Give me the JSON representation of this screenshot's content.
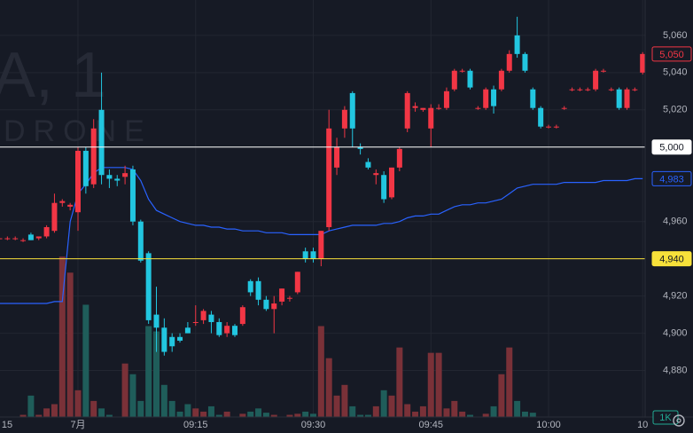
{
  "watermark": {
    "symbol": "A, 1",
    "name": "DRONE"
  },
  "chart_data": {
    "type": "candlestick",
    "categories": [
      "15",
      null,
      null,
      null,
      null,
      null,
      null,
      null,
      null,
      null,
      "7月",
      null,
      null,
      null,
      null,
      null,
      null,
      null,
      null,
      null,
      null,
      null,
      null,
      null,
      null,
      "09:15",
      null,
      null,
      null,
      null,
      null,
      null,
      null,
      null,
      null,
      null,
      null,
      null,
      null,
      null,
      "09:30",
      null,
      null,
      null,
      null,
      null,
      null,
      null,
      null,
      null,
      null,
      null,
      null,
      null,
      null,
      "09:45",
      null,
      null,
      null,
      null,
      null,
      null,
      null,
      null,
      null,
      null,
      null,
      null,
      null,
      null,
      "10:00",
      null,
      null,
      null,
      null,
      null,
      null,
      null,
      null,
      null,
      null,
      null,
      "10"
    ],
    "open": [
      4951,
      4951,
      4951,
      4950,
      4953,
      4951,
      4952,
      4955,
      4970,
      4968,
      4965,
      4998,
      4980,
      5020,
      4985,
      4983,
      4984,
      4988,
      4960,
      4943,
      4910,
      4903,
      4898,
      4898,
      4903,
      4906,
      4907,
      4910,
      4906,
      4900,
      4904,
      4905,
      4928,
      4928,
      4918,
      4913,
      4917,
      4919,
      4922,
      4944,
      4944,
      4940,
      4957,
      4989,
      5010,
      5029,
      5000,
      4992,
      4985,
      4985,
      4973,
      4989,
      5010,
      5021,
      5020,
      5010,
      5021,
      5021,
      5031,
      5041,
      5041,
      5021,
      5021,
      5031,
      5031,
      5041,
      5060,
      5050,
      5031,
      5021,
      5011,
      5011,
      5021,
      5031,
      5031,
      5031,
      5031,
      5041,
      5031,
      5031,
      5021,
      5031,
      5040
    ],
    "high": [
      4952,
      4952,
      4952,
      4951,
      4954,
      4952,
      4958,
      4975,
      4972,
      4970,
      5000,
      5000,
      5015,
      5040,
      4988,
      4985,
      4990,
      4990,
      4961,
      4944,
      4925,
      4908,
      4900,
      4900,
      4906,
      4915,
      4913,
      4912,
      4908,
      4906,
      4905,
      4915,
      4929,
      4930,
      4920,
      4920,
      4924,
      4920,
      4933,
      4946,
      4946,
      4955,
      5020,
      5005,
      5022,
      5030,
      5002,
      4994,
      4988,
      4987,
      4989,
      5000,
      5030,
      5024,
      5021,
      5023,
      5023,
      5032,
      5042,
      5042,
      5042,
      5022,
      5032,
      5033,
      5042,
      5052,
      5070,
      5051,
      5032,
      5022,
      5012,
      5012,
      5022,
      5032,
      5032,
      5032,
      5042,
      5042,
      5032,
      5032,
      5032,
      5032,
      5051
    ],
    "low": [
      4950,
      4950,
      4950,
      4949,
      4950,
      4950,
      4951,
      4954,
      4968,
      4966,
      4955,
      4975,
      4978,
      4980,
      4978,
      4979,
      4980,
      4958,
      4938,
      4905,
      4890,
      4888,
      4890,
      4895,
      4900,
      4904,
      4905,
      4900,
      4898,
      4898,
      4898,
      4904,
      4920,
      4915,
      4912,
      4900,
      4915,
      4917,
      4921,
      4938,
      4938,
      4936,
      4955,
      4985,
      5005,
      5000,
      4996,
      4988,
      4980,
      4970,
      4972,
      4987,
      5008,
      5019,
      5019,
      5000,
      5020,
      5020,
      5030,
      5040,
      5031,
      5020,
      5020,
      5018,
      5030,
      5040,
      5048,
      5040,
      5020,
      5010,
      5010,
      5010,
      5020,
      5030,
      5030,
      5030,
      5030,
      5040,
      5030,
      5020,
      5020,
      5030,
      5039
    ],
    "close": [
      4951,
      4951,
      4951,
      4950,
      4950,
      4952,
      4957,
      4970,
      4971,
      4969,
      4998,
      4979,
      5010,
      4985,
      4983,
      4982,
      4986,
      4960,
      4939,
      4907,
      4903,
      4890,
      4893,
      4896,
      4900,
      4906,
      4912,
      4906,
      4899,
      4904,
      4899,
      4914,
      4922,
      4918,
      4913,
      4916,
      4924,
      4919,
      4933,
      4940,
      4940,
      4955,
      5010,
      5000,
      5020,
      5010,
      4999,
      4989,
      4986,
      4972,
      4989,
      4999,
      5029,
      5022,
      5021,
      5021,
      5021,
      5030,
      5041,
      5041,
      5032,
      5021,
      5031,
      5022,
      5041,
      5050,
      5050,
      5041,
      5021,
      5011,
      5011,
      5011,
      5021,
      5031,
      5031,
      5031,
      5041,
      5041,
      5031,
      5021,
      5031,
      5031,
      5050
    ],
    "up_color": "#f23645",
    "down_color": "#22c6e0",
    "volume": [
      800,
      1000,
      800,
      1200,
      3000,
      1200,
      1800,
      2200,
      16000,
      14500,
      3500,
      11500,
      2500,
      1800,
      1200,
      800,
      6000,
      5000,
      2500,
      9500,
      9000,
      4000,
      2500,
      1500,
      2200,
      1800,
      1500,
      2000,
      1200,
      1500,
      1000,
      1300,
      1500,
      1800,
      1400,
      1200,
      1000,
      1200,
      1300,
      1500,
      1300,
      9500,
      6500,
      3000,
      4000,
      2000,
      1200,
      1200,
      2000,
      3500,
      3000,
      7500,
      2200,
      1500,
      2000,
      7000,
      7000,
      1800,
      2500,
      1500,
      1200,
      1000,
      1300,
      2000,
      5000,
      7500,
      2500,
      1500,
      1400,
      1000,
      900,
      800,
      800,
      900,
      700,
      800,
      900,
      800,
      900,
      800,
      700,
      800,
      1000
    ],
    "volume_ylim": [
      0,
      40000
    ],
    "volume_up_color": "#7a3138",
    "volume_down_color": "#1f5d5a",
    "last_volume_label": "1K",
    "vwap": [
      4916,
      4916,
      4916,
      4916,
      4916,
      4916,
      4916,
      4917,
      4917,
      4960,
      4975,
      4980,
      4986,
      4989,
      4989,
      4989,
      4989,
      4988,
      4982,
      4972,
      4966,
      4964,
      4962,
      4960,
      4959,
      4958,
      4958,
      4957,
      4957,
      4956,
      4956,
      4955,
      4955,
      4955,
      4954,
      4954,
      4954,
      4953,
      4953,
      4953,
      4953,
      4953,
      4955,
      4956,
      4957,
      4958,
      4958,
      4958,
      4958,
      4959,
      4959,
      4960,
      4962,
      4963,
      4963,
      4964,
      4964,
      4966,
      4968,
      4969,
      4969,
      4970,
      4970,
      4971,
      4972,
      4975,
      4978,
      4979,
      4980,
      4980,
      4980,
      4980,
      4981,
      4981,
      4981,
      4981,
      4981,
      4982,
      4982,
      4982,
      4982,
      4983,
      4983
    ],
    "vwap_color": "#2962ff",
    "ylim": [
      4855,
      5079
    ],
    "yticks": [
      {
        "value": 4880,
        "label": "4,880"
      },
      {
        "value": 4900,
        "label": "4,900"
      },
      {
        "value": 4920,
        "label": "4,920"
      },
      {
        "value": 4940,
        "label": "4,940"
      },
      {
        "value": 4960,
        "label": "4,960"
      },
      {
        "value": 5000,
        "label": "5,000"
      },
      {
        "value": 5020,
        "label": "5,020"
      },
      {
        "value": 5040,
        "label": "5,040"
      },
      {
        "value": 5060,
        "label": "5,060"
      }
    ],
    "grid": true,
    "price_lines": [
      {
        "value": 5050,
        "label": "5,050",
        "color": "#f23645",
        "filled": false,
        "line": false
      },
      {
        "value": 5000,
        "label": "5,000",
        "color": "#ffffff",
        "filled": true,
        "line": true
      },
      {
        "value": 4983,
        "label": "4,983",
        "color": "#2962ff",
        "filled": false,
        "line": false
      },
      {
        "value": 4940,
        "label": "4,940",
        "color": "#f7e13a",
        "filled": true,
        "line": true
      }
    ]
  }
}
